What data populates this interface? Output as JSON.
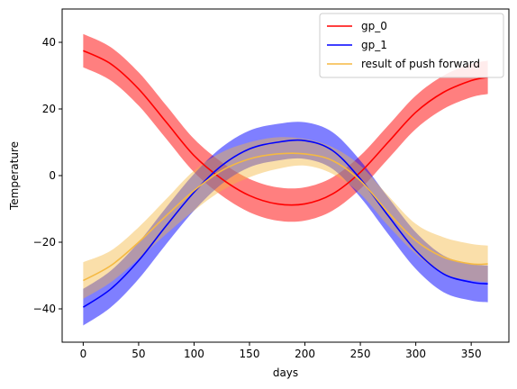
{
  "chart_data": {
    "type": "line",
    "title": "",
    "xlabel": "days",
    "ylabel": "Temperature",
    "xlim": [
      -19,
      384
    ],
    "ylim": [
      -50,
      50
    ],
    "xticks": [
      0,
      50,
      100,
      150,
      200,
      250,
      300,
      350
    ],
    "yticks": [
      -40,
      -20,
      0,
      20,
      40
    ],
    "xtick_labels": [
      "0",
      "50",
      "100",
      "150",
      "200",
      "250",
      "300",
      "350"
    ],
    "ytick_labels": [
      "−40",
      "−20",
      "0",
      "20",
      "40"
    ],
    "grid": false,
    "legend_position": "top-right",
    "x": [
      0,
      25,
      50,
      75,
      100,
      125,
      150,
      175,
      200,
      225,
      250,
      275,
      300,
      325,
      350,
      365
    ],
    "series": [
      {
        "name": "gp_0",
        "color": "#ff0000",
        "band_color": "#ff0000",
        "band_opacity": 0.5,
        "values": [
          37.5,
          33.5,
          26.0,
          16.0,
          6.0,
          -1.0,
          -6.0,
          -8.5,
          -8.5,
          -5.5,
          1.0,
          10.0,
          19.0,
          25.0,
          28.5,
          29.5
        ],
        "lower": [
          32.5,
          28.5,
          21.0,
          11.0,
          1.0,
          -6.0,
          -11.0,
          -13.5,
          -13.5,
          -10.5,
          -4.0,
          5.0,
          14.0,
          20.0,
          23.5,
          24.5
        ],
        "upper": [
          42.5,
          38.5,
          31.0,
          21.0,
          11.0,
          4.0,
          -1.0,
          -3.5,
          -3.5,
          -0.5,
          6.0,
          15.0,
          24.0,
          30.0,
          33.5,
          34.5
        ]
      },
      {
        "name": "gp_1",
        "color": "#0000ff",
        "band_color": "#0000ff",
        "band_opacity": 0.5,
        "values": [
          -39.5,
          -34.0,
          -25.5,
          -15.0,
          -5.0,
          3.0,
          8.0,
          10.0,
          10.5,
          7.5,
          -1.0,
          -12.0,
          -22.5,
          -29.5,
          -32.0,
          -32.5
        ],
        "lower": [
          -45.0,
          -39.5,
          -31.0,
          -20.5,
          -10.5,
          -2.5,
          2.5,
          4.5,
          5.0,
          2.0,
          -6.5,
          -17.5,
          -28.0,
          -35.0,
          -37.5,
          -38.0
        ],
        "upper": [
          -34.0,
          -28.5,
          -20.0,
          -9.5,
          0.5,
          8.5,
          13.5,
          15.5,
          16.0,
          13.0,
          4.5,
          -6.5,
          -17.0,
          -24.0,
          -26.5,
          -27.0
        ]
      },
      {
        "name": "result of push forward",
        "color": "#f5b942",
        "band_color": "#f5b942",
        "band_opacity": 0.45,
        "values": [
          -31.5,
          -27.0,
          -20.0,
          -12.0,
          -4.5,
          1.5,
          5.0,
          6.5,
          6.5,
          4.5,
          -1.5,
          -11.0,
          -19.5,
          -24.5,
          -26.5,
          -26.5
        ],
        "lower": [
          -37.0,
          -32.0,
          -25.0,
          -17.5,
          -10.5,
          -4.5,
          -0.5,
          2.0,
          3.0,
          0.5,
          -5.5,
          -15.0,
          -23.5,
          -29.5,
          -31.5,
          -32.0
        ],
        "upper": [
          -26.0,
          -22.5,
          -15.5,
          -7.0,
          1.5,
          7.0,
          10.0,
          11.5,
          11.0,
          8.5,
          3.0,
          -6.0,
          -14.5,
          -18.5,
          -20.5,
          -21.0
        ]
      }
    ]
  }
}
